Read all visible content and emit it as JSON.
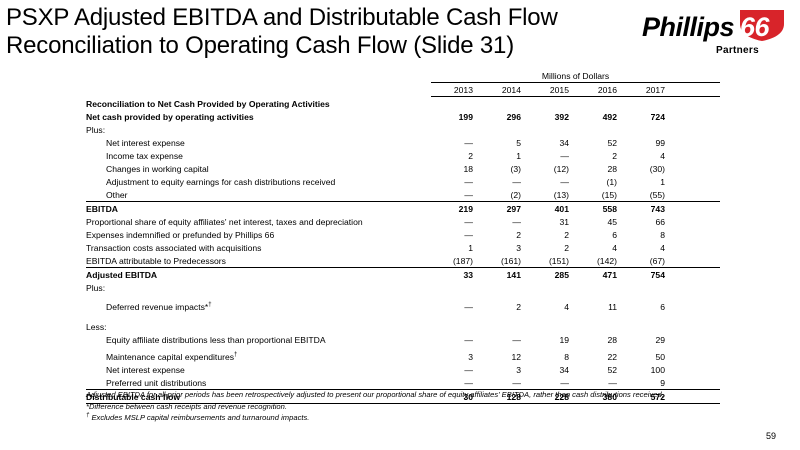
{
  "title_line1": "PSXP Adjusted EBITDA and Distributable Cash Flow",
  "title_line2": "Reconciliation to Operating Cash Flow (Slide 31)",
  "logo": {
    "main": "Phillips",
    "number": "66",
    "sub": "Partners",
    "colors": {
      "shield": "#d8242a",
      "text": "#000000"
    }
  },
  "table": {
    "super_header": "Millions of Dollars",
    "years": [
      "2013",
      "2014",
      "2015",
      "2016",
      "2017"
    ],
    "section_title": "Reconciliation to Net Cash Provided by Operating Activities",
    "rows": [
      {
        "label": "Net cash provided by operating activities",
        "values": [
          "199",
          "296",
          "392",
          "492",
          "724"
        ]
      },
      {
        "label": "Plus:",
        "values": [
          "",
          "",
          "",
          "",
          ""
        ]
      },
      {
        "label": "Net interest expense",
        "values": [
          "—",
          "5",
          "34",
          "52",
          "99"
        ]
      },
      {
        "label": "Income tax expense",
        "values": [
          "2",
          "1",
          "—",
          "2",
          "4"
        ]
      },
      {
        "label": "Changes in working capital",
        "values": [
          "18",
          "(3)",
          "(12)",
          "28",
          "(30)"
        ]
      },
      {
        "label": "Adjustment to equity earnings for cash distributions received",
        "values": [
          "—",
          "—",
          "—",
          "(1)",
          "1"
        ]
      },
      {
        "label": "Other",
        "values": [
          "—",
          "(2)",
          "(13)",
          "(15)",
          "(55)"
        ]
      },
      {
        "label": "EBITDA",
        "values": [
          "219",
          "297",
          "401",
          "558",
          "743"
        ]
      },
      {
        "label": "Proportional share of equity affiliates' net interest, taxes and depreciation",
        "values": [
          "—",
          "—",
          "31",
          "45",
          "66"
        ]
      },
      {
        "label": "Expenses indemnified or prefunded by Phillips 66",
        "values": [
          "—",
          "2",
          "2",
          "6",
          "8"
        ]
      },
      {
        "label": "Transaction costs associated with acquisitions",
        "values": [
          "1",
          "3",
          "2",
          "4",
          "4"
        ]
      },
      {
        "label": "EBITDA attributable to Predecessors",
        "values": [
          "(187)",
          "(161)",
          "(151)",
          "(142)",
          "(67)"
        ]
      },
      {
        "label": "Adjusted EBITDA",
        "values": [
          "33",
          "141",
          "285",
          "471",
          "754"
        ]
      },
      {
        "label": "Plus:",
        "values": [
          "",
          "",
          "",
          "",
          ""
        ]
      },
      {
        "label": "Deferred revenue impacts*",
        "sup": "†",
        "values": [
          "—",
          "2",
          "4",
          "11",
          "6"
        ]
      },
      {
        "label": "Less:",
        "values": [
          "",
          "",
          "",
          "",
          ""
        ]
      },
      {
        "label": "Equity affiliate distributions less than proportional EBITDA",
        "values": [
          "—",
          "—",
          "19",
          "28",
          "29"
        ]
      },
      {
        "label": "Maintenance capital expenditures",
        "sup": "†",
        "values": [
          "3",
          "12",
          "8",
          "22",
          "50"
        ]
      },
      {
        "label": "Net interest expense",
        "values": [
          "—",
          "3",
          "34",
          "52",
          "100"
        ]
      },
      {
        "label": "Preferred unit distributions",
        "values": [
          "—",
          "—",
          "—",
          "—",
          "9"
        ]
      },
      {
        "label": "Distributable cash flow",
        "values": [
          "30",
          "128",
          "228",
          "380",
          "572"
        ]
      }
    ]
  },
  "footnotes": {
    "note1": "Adjusted EBITDA for all prior periods has been retrospectively adjusted to present our proportional share of equity affiliates' EBITDA, rather than cash distributions received.",
    "note2": "*Difference between cash receipts and revenue recognition.",
    "note3_mark": "†",
    "note3": " Excludes MSLP capital reimbursements and turnaround impacts."
  },
  "page_number": "59"
}
